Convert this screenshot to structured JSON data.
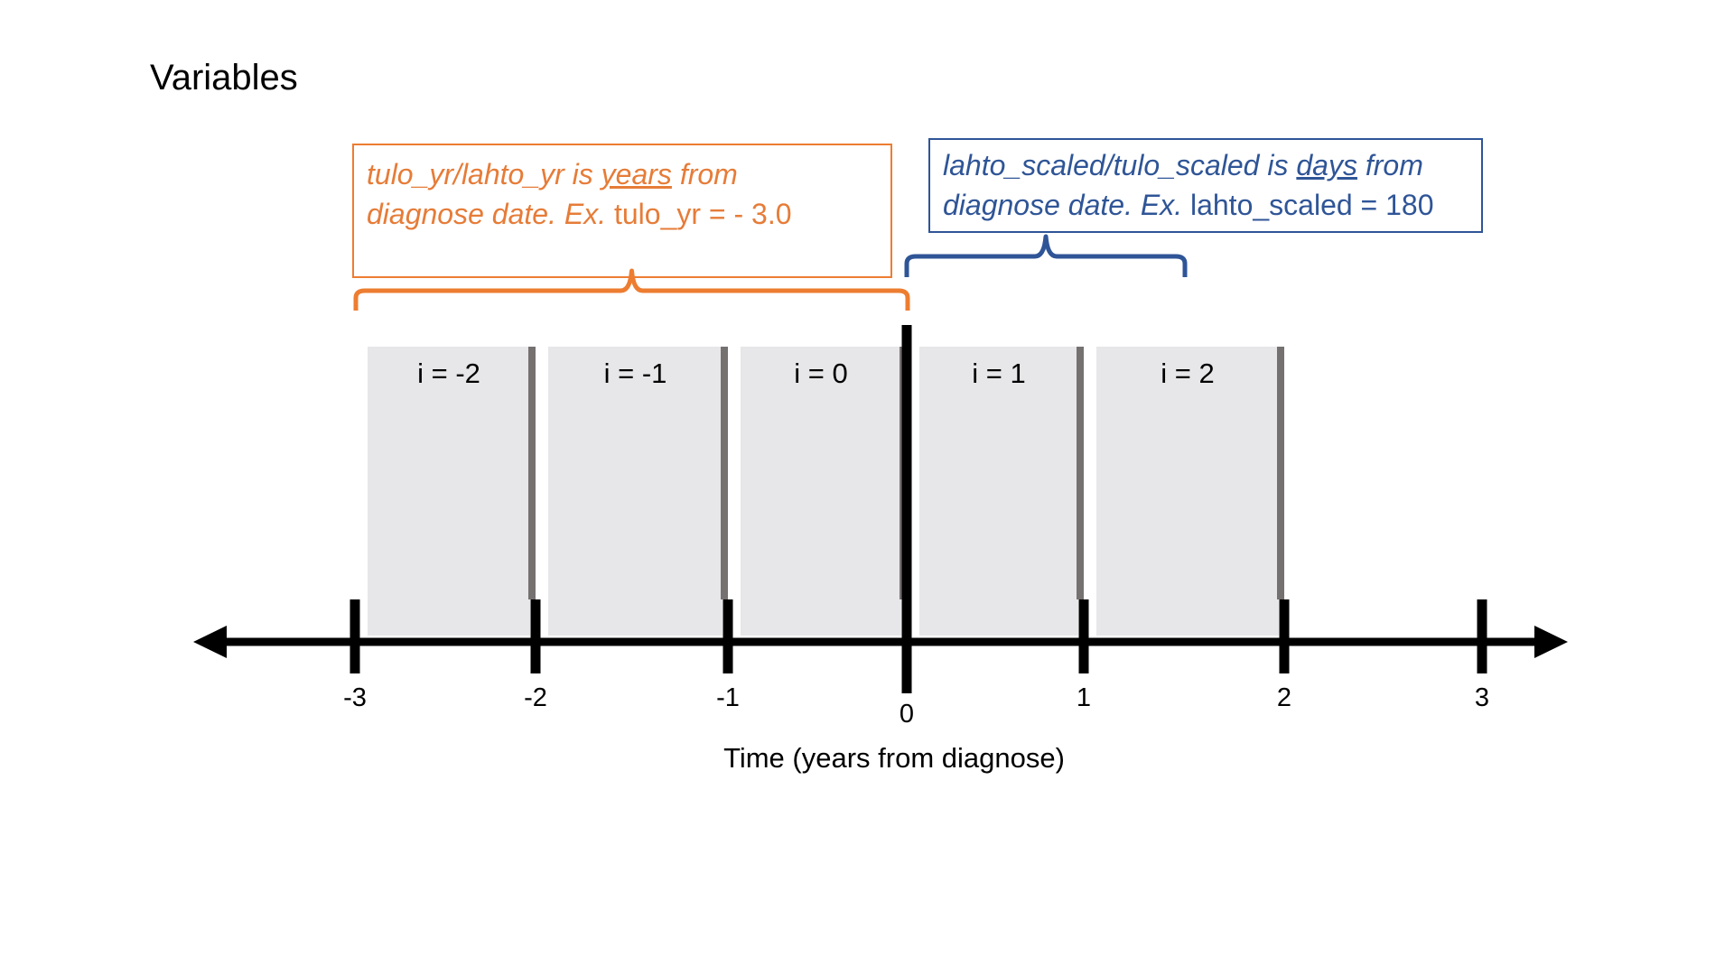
{
  "title": "Variables",
  "orange_note": {
    "part1": "tulo_yr/lahto_yr is ",
    "underlined": "years",
    "part2": " from",
    "line2_italic": "diagnose date. Ex.",
    "line2_plain": " tulo_yr = - 3.0",
    "color": "#ED7D31"
  },
  "blue_note": {
    "part1": "lahto_scaled/tulo_scaled is ",
    "underlined": "days",
    "part2": " from",
    "line2_italic": "diagnose date. Ex.",
    "line2_plain": " lahto_scaled = 180",
    "color": "#2F5597"
  },
  "intervals": [
    {
      "label": "i = -2",
      "start": -3,
      "end": -2
    },
    {
      "label": "i = -1",
      "start": -2,
      "end": -1
    },
    {
      "label": "i = 0",
      "start": -1,
      "end": 0
    },
    {
      "label": "i = 1",
      "start": 0,
      "end": 1
    },
    {
      "label": "i = 2",
      "start": 1,
      "end": 2
    }
  ],
  "ticks": [
    "-3",
    "-2",
    "-1",
    "0",
    "1",
    "2",
    "3"
  ],
  "axis_label": "Time (years from diagnose)",
  "orange_brace_range": [
    -3,
    0
  ],
  "blue_brace_range": [
    0,
    1.5
  ],
  "colors": {
    "interval_fill": "#E7E6E8",
    "divider": "#767171",
    "axis": "#000000"
  }
}
